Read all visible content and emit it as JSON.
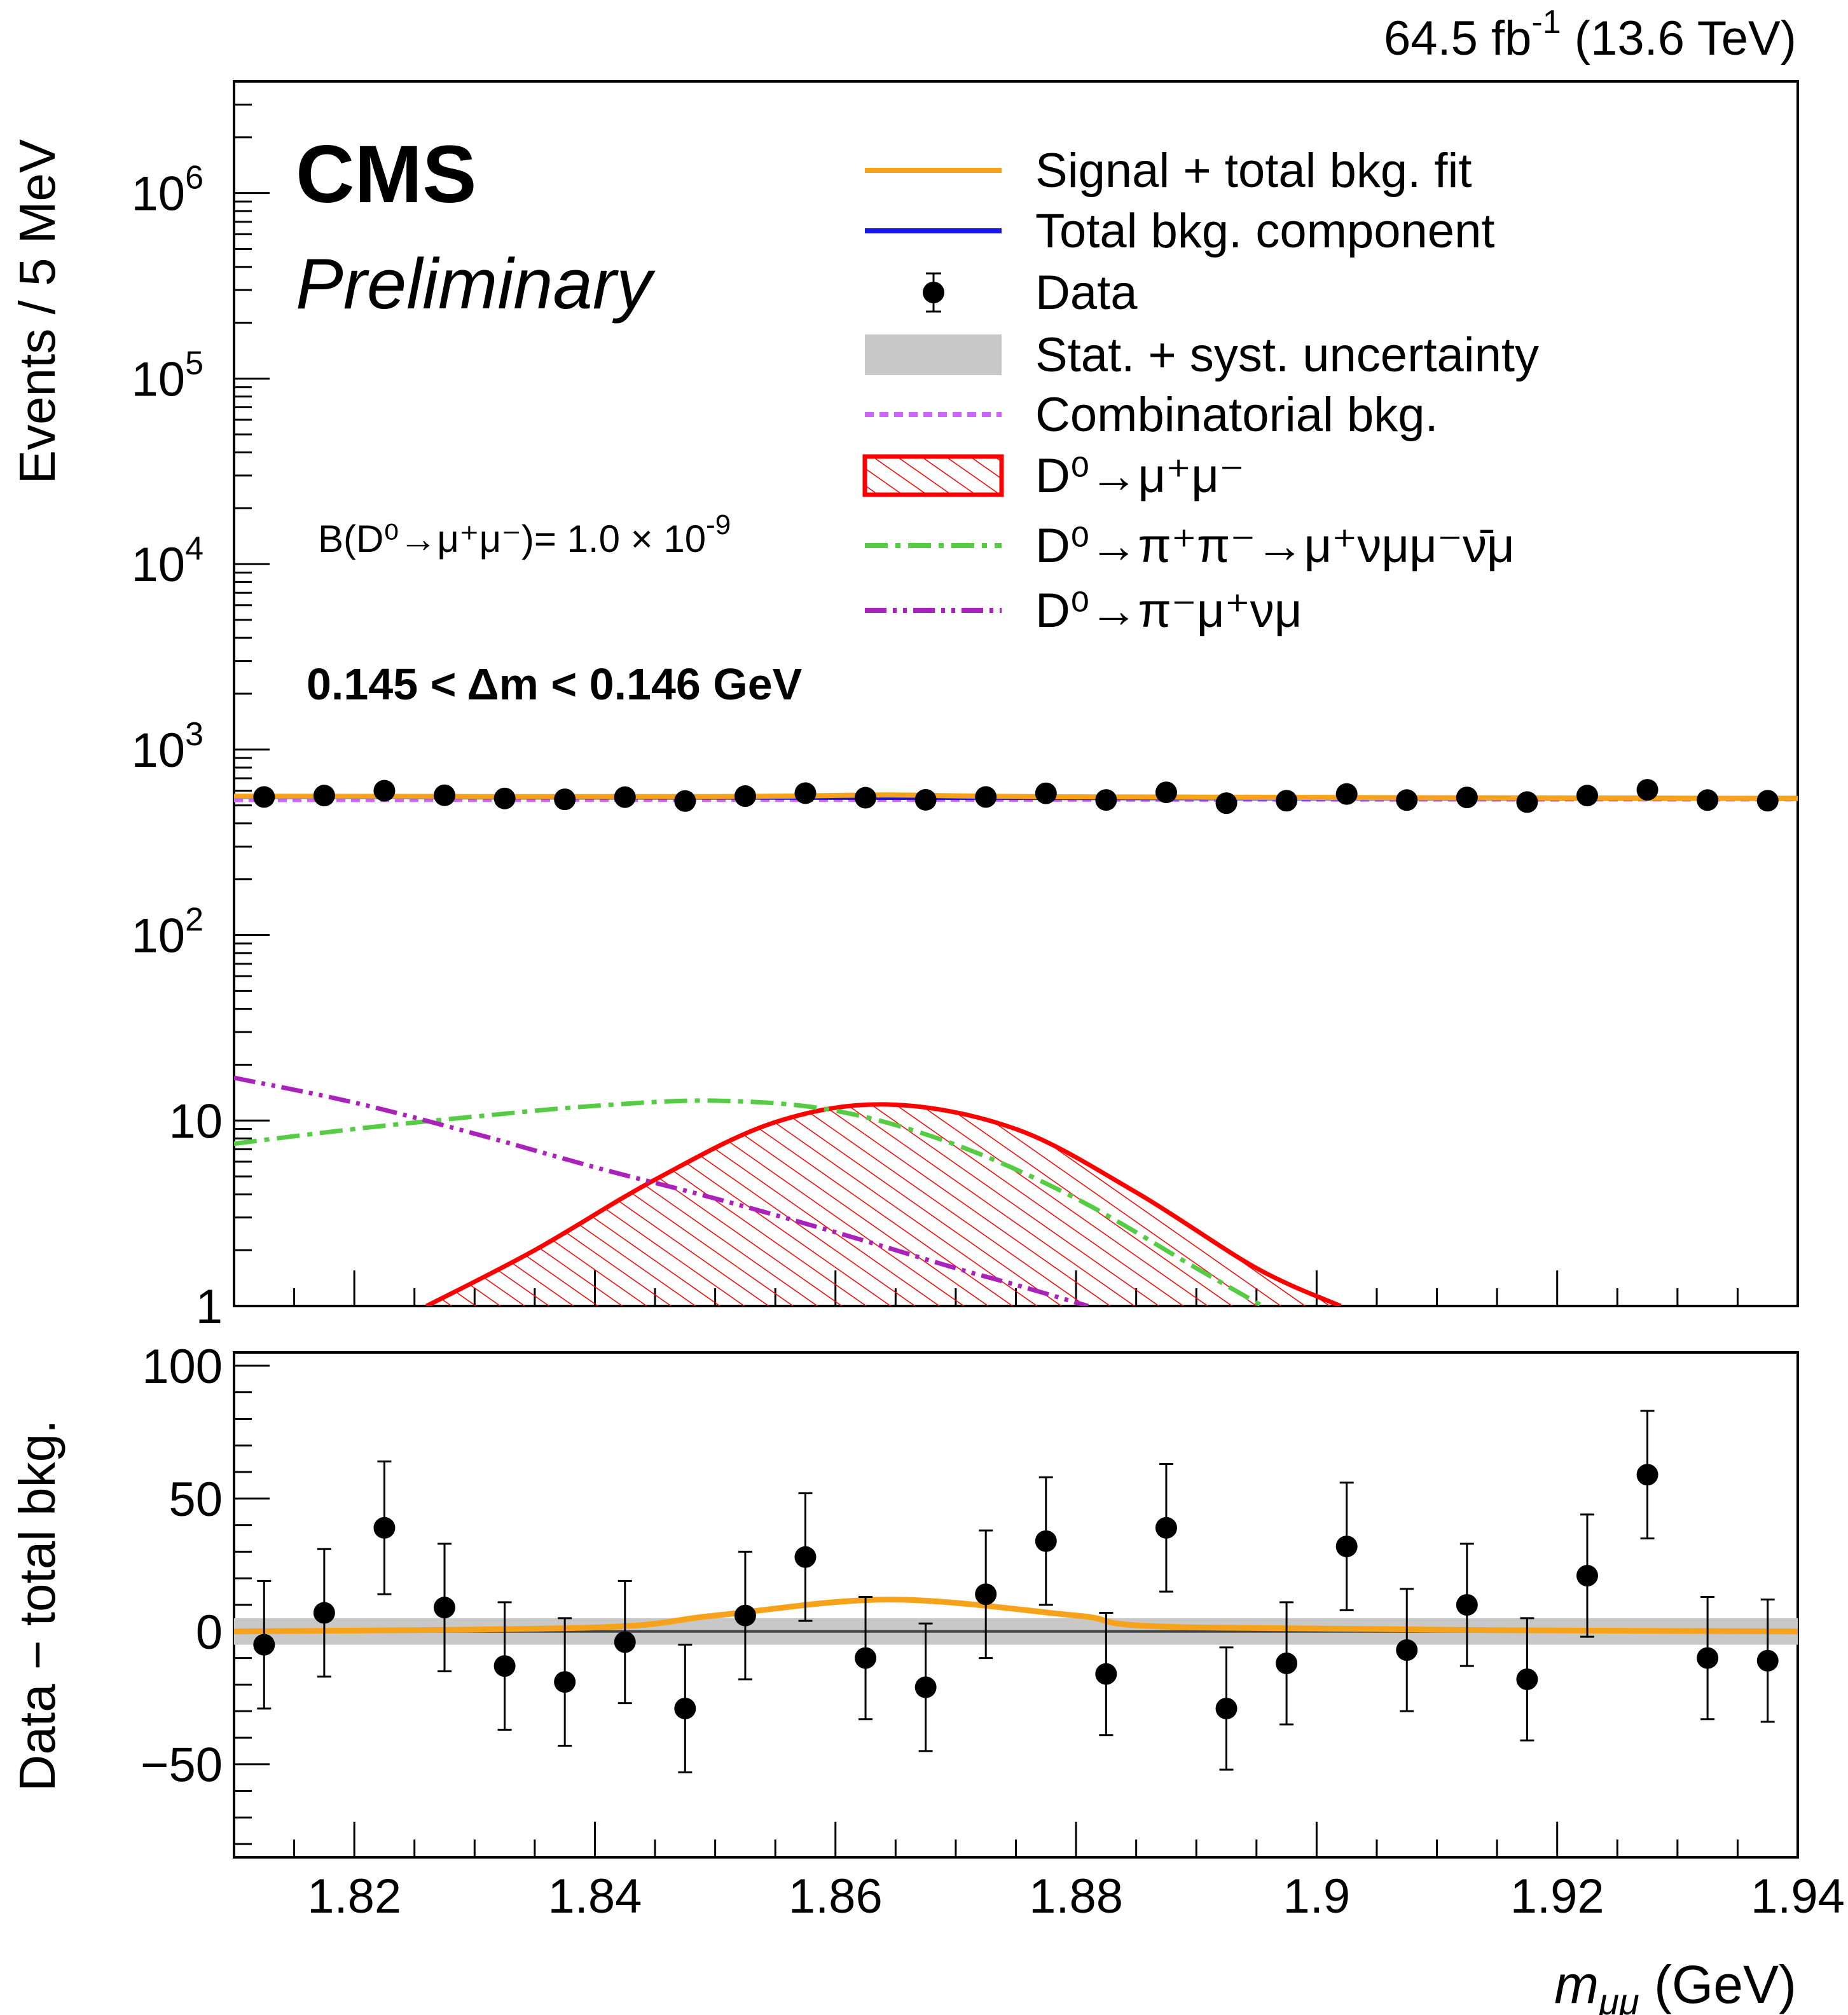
{
  "header": {
    "lumi_value": "64.5 fb",
    "lumi_exp": "-1",
    "energy": " (13.6 TeV)"
  },
  "labels": {
    "experiment": "CMS",
    "status": "Preliminary",
    "bf_text": "B(D⁰→μ⁺μ⁻)= 1.0 × 10",
    "bf_exp": "-9",
    "dm_cut": "0.145 <  Δm < 0.146 GeV"
  },
  "legend": [
    {
      "label": "Signal + total bkg. fit",
      "color": "#f7a21b",
      "style": "solid",
      "icon": "line-icon"
    },
    {
      "label": "Total bkg. component",
      "color": "#1515f0",
      "style": "solid",
      "icon": "line-icon"
    },
    {
      "label": "Data",
      "color": "#000000",
      "style": "marker",
      "icon": "data-marker-icon"
    },
    {
      "label": "Stat. + syst. uncertainty",
      "color": "#c8c8c8",
      "style": "band",
      "icon": "band-icon"
    },
    {
      "label": "Combinatorial bkg.",
      "color": "#cc66ff",
      "style": "dotted",
      "icon": "line-icon"
    },
    {
      "label": "D⁰→μ⁺μ⁻",
      "color": "#ff0000",
      "style": "hatched",
      "icon": "hatched-box-icon"
    },
    {
      "label": "D⁰→π⁺π⁻→μ⁺νμμ⁻ν̄μ",
      "color": "#55cc44",
      "style": "dashdot",
      "icon": "line-icon"
    },
    {
      "label": "D⁰→π⁻μ⁺νμ",
      "color": "#aa22bb",
      "style": "dashdotdot",
      "icon": "line-icon"
    }
  ],
  "chart_data": [
    {
      "type": "line",
      "panel": "main",
      "xlabel": "mμμ (GeV)",
      "ylabel": "Events / 5 MeV",
      "xlim": [
        1.81,
        1.94
      ],
      "ylim": [
        1,
        4000000
      ],
      "yscale": "log",
      "grid": false,
      "legend_position": "top-right",
      "x_ticks": [
        1.82,
        1.84,
        1.86,
        1.88,
        1.9,
        1.92,
        1.94
      ],
      "x_tick_labels": [
        "1.82",
        "1.84",
        "1.86",
        "1.88",
        "1.9",
        "1.92",
        "1.94"
      ],
      "y_ticks": [
        1,
        10,
        100,
        1000,
        10000,
        100000,
        1000000
      ],
      "y_tick_labels": [
        {
          "base": "1",
          "exp": ""
        },
        {
          "base": "10",
          "exp": ""
        },
        {
          "base": "10",
          "exp": "2"
        },
        {
          "base": "10",
          "exp": "3"
        },
        {
          "base": "10",
          "exp": "4"
        },
        {
          "base": "10",
          "exp": "5"
        },
        {
          "base": "10",
          "exp": "6"
        }
      ],
      "data_points": {
        "x": [
          1.8125,
          1.8175,
          1.8225,
          1.8275,
          1.8325,
          1.8375,
          1.8425,
          1.8475,
          1.8525,
          1.8575,
          1.8625,
          1.8675,
          1.8725,
          1.8775,
          1.8825,
          1.8875,
          1.8925,
          1.8975,
          1.9025,
          1.9075,
          1.9125,
          1.9175,
          1.9225,
          1.9275,
          1.9325,
          1.9375
        ],
        "y": [
          555,
          565,
          600,
          567,
          545,
          539,
          554,
          528,
          561,
          582,
          550,
          536,
          555,
          581,
          535,
          588,
          514,
          530,
          576,
          534,
          552,
          521,
          565,
          607,
          534,
          530
        ]
      },
      "series": [
        {
          "name": "Signal + total bkg. fit",
          "x": [
            1.81,
            1.85,
            1.8645,
            1.88,
            1.94
          ],
          "y": [
            560,
            558,
            569,
            556,
            545
          ]
        },
        {
          "name": "Total bkg. component",
          "x": [
            1.81,
            1.94
          ],
          "y": [
            558,
            545
          ]
        },
        {
          "name": "Combinatorial bkg.",
          "x": [
            1.81,
            1.94
          ],
          "y": [
            535,
            540
          ]
        },
        {
          "name": "D⁰→μ⁺μ⁻",
          "x": [
            1.826,
            1.835,
            1.845,
            1.855,
            1.8645,
            1.875,
            1.885,
            1.895,
            1.902
          ],
          "y": [
            1.0,
            2.0,
            4.8,
            9.8,
            12.2,
            9.0,
            4.1,
            1.6,
            1.0
          ]
        },
        {
          "name": "D⁰→π⁺π⁻→μ⁺νμμ⁻ν̄μ",
          "x": [
            1.81,
            1.82,
            1.83,
            1.84,
            1.85,
            1.86,
            1.87,
            1.88,
            1.89,
            1.8955
          ],
          "y": [
            7.5,
            9.0,
            10.5,
            12.0,
            12.8,
            11.3,
            7.4,
            3.8,
            1.6,
            1.0
          ]
        },
        {
          "name": "D⁰→π⁻μ⁺νμ",
          "x": [
            1.81,
            1.82,
            1.83,
            1.84,
            1.85,
            1.86,
            1.87,
            1.875,
            1.881
          ],
          "y": [
            17.0,
            12.5,
            8.5,
            5.6,
            3.8,
            2.5,
            1.6,
            1.3,
            1.0
          ]
        }
      ]
    },
    {
      "type": "scatter",
      "panel": "ratio",
      "xlabel": "mμμ (GeV)",
      "ylabel": "Data − total bkg.",
      "xlim": [
        1.81,
        1.94
      ],
      "ylim": [
        -85,
        105
      ],
      "grid": false,
      "y_ticks": [
        -50,
        0,
        50,
        100
      ],
      "y_tick_labels": [
        "−50",
        "0",
        "50",
        "100"
      ],
      "data_points": {
        "x": [
          1.8125,
          1.8175,
          1.8225,
          1.8275,
          1.8325,
          1.8375,
          1.8425,
          1.8475,
          1.8525,
          1.8575,
          1.8625,
          1.8675,
          1.8725,
          1.8775,
          1.8825,
          1.8875,
          1.8925,
          1.8975,
          1.9025,
          1.9075,
          1.9125,
          1.9175,
          1.9225,
          1.9275,
          1.9325,
          1.9375
        ],
        "y": [
          -5,
          7,
          39,
          9,
          -13,
          -19,
          -4,
          -29,
          6,
          28,
          -10,
          -21,
          14,
          34,
          -16,
          39,
          -29,
          -12,
          32,
          -7,
          10,
          -18,
          21,
          59,
          -10,
          -11
        ],
        "err": [
          24,
          24,
          25,
          24,
          24,
          24,
          23,
          24,
          24,
          24,
          23,
          24,
          24,
          24,
          23,
          24,
          23,
          23,
          24,
          23,
          23,
          23,
          23,
          24,
          23,
          23
        ]
      },
      "series": [
        {
          "name": "Signal + total bkg. fit",
          "x": [
            1.81,
            1.84,
            1.85,
            1.8645,
            1.88,
            1.89,
            1.94
          ],
          "y": [
            0,
            1.5,
            6,
            12,
            6,
            1.5,
            0
          ]
        },
        {
          "name": "Total bkg. component",
          "x": [
            1.81,
            1.94
          ],
          "y": [
            0,
            0
          ]
        }
      ],
      "band": {
        "name": "Stat. + syst. uncertainty",
        "halfwidth": 5
      }
    }
  ]
}
